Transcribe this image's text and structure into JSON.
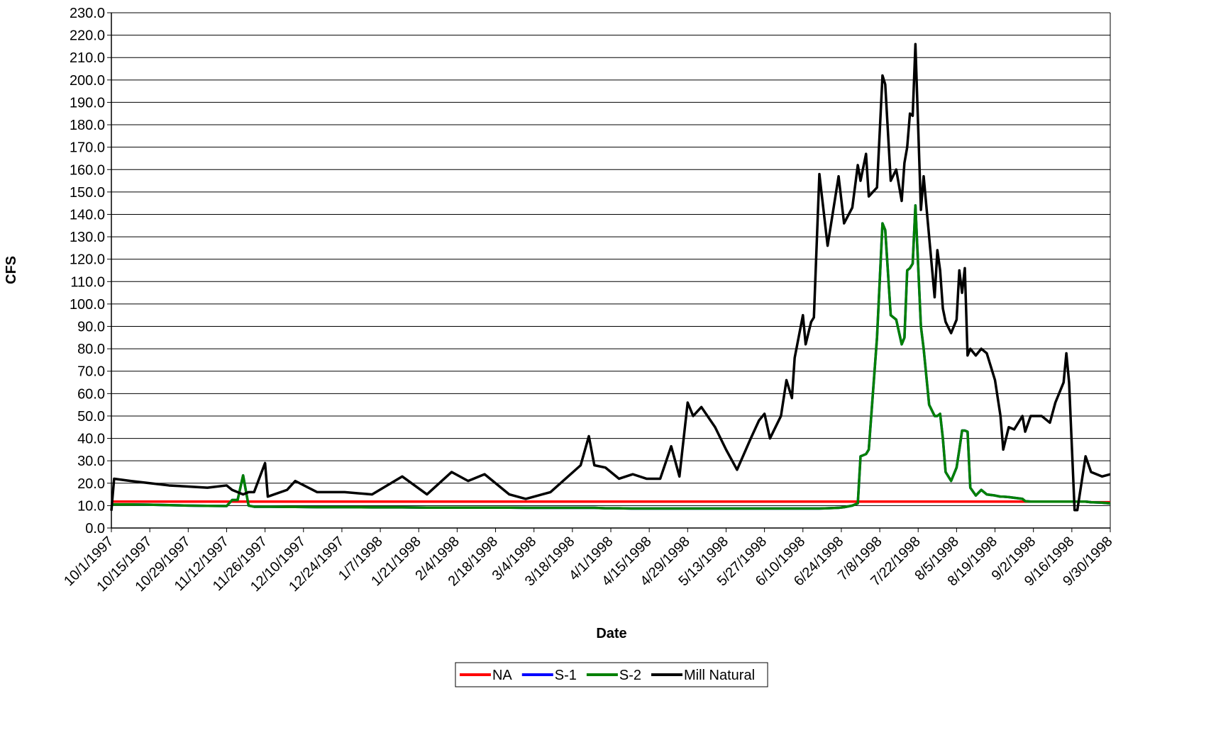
{
  "chart_data": {
    "type": "line",
    "xlabel": "Date",
    "ylabel": "CFS",
    "grid": true,
    "legend": "bottom",
    "x": [
      "10/1/1997",
      "10/2/1997",
      "10/8/1997",
      "10/15/1997",
      "10/22/1997",
      "10/29/1997",
      "11/5/1997",
      "11/12/1997",
      "11/14/1997",
      "11/16/1997",
      "11/18/1997",
      "11/20/1997",
      "11/22/1997",
      "11/26/1997",
      "11/27/1997",
      "12/4/1997",
      "12/7/1997",
      "12/15/1997",
      "12/25/1997",
      "1/4/1998",
      "1/15/1998",
      "1/24/1998",
      "2/2/1998",
      "2/8/1998",
      "2/14/1998",
      "2/23/1998",
      "3/1/1998",
      "3/10/1998",
      "3/21/1998",
      "3/24/1998",
      "3/26/1998",
      "3/30/1998",
      "4/4/1998",
      "4/9/1998",
      "4/14/1998",
      "4/19/1998",
      "4/23/1998",
      "4/26/1998",
      "4/29/1998",
      "5/1/1998",
      "5/4/1998",
      "5/9/1998",
      "5/13/1998",
      "5/17/1998",
      "5/22/1998",
      "5/25/1998",
      "5/27/1998",
      "5/29/1998",
      "6/2/1998",
      "6/4/1998",
      "6/6/1998",
      "6/7/1998",
      "6/10/1998",
      "6/11/1998",
      "6/13/1998",
      "6/14/1998",
      "6/16/1998",
      "6/19/1998",
      "6/23/1998",
      "6/25/1998",
      "6/28/1998",
      "6/30/1998",
      "7/1/1998",
      "7/3/1998",
      "7/4/1998",
      "7/7/1998",
      "7/9/1998",
      "7/10/1998",
      "7/12/1998",
      "7/14/1998",
      "7/16/1998",
      "7/17/1998",
      "7/18/1998",
      "7/19/1998",
      "7/20/1998",
      "7/21/1998",
      "7/23/1998",
      "7/24/1998",
      "7/26/1998",
      "7/28/1998",
      "7/29/1998",
      "7/30/1998",
      "7/31/1998",
      "8/1/1998",
      "8/3/1998",
      "8/5/1998",
      "8/6/1998",
      "8/7/1998",
      "8/8/1998",
      "8/9/1998",
      "8/10/1998",
      "8/12/1998",
      "8/14/1998",
      "8/16/1998",
      "8/19/1998",
      "8/21/1998",
      "8/22/1998",
      "8/24/1998",
      "8/26/1998",
      "8/29/1998",
      "8/30/1998",
      "9/1/1998",
      "9/5/1998",
      "9/8/1998",
      "9/10/1998",
      "9/13/1998",
      "9/14/1998",
      "9/15/1998",
      "9/17/1998",
      "9/18/1998",
      "9/21/1998",
      "9/23/1998",
      "9/27/1998",
      "9/30/1998"
    ],
    "series": [
      {
        "name": "NA",
        "color": "#ff0000",
        "values": [
          11.8,
          11.8,
          11.8,
          11.8,
          11.8,
          11.8,
          11.8,
          11.8,
          11.8,
          11.8,
          11.8,
          11.8,
          11.8,
          11.8,
          11.8,
          11.8,
          11.8,
          11.8,
          11.8,
          11.8,
          11.8,
          11.8,
          11.8,
          11.8,
          11.8,
          11.8,
          11.8,
          11.8,
          11.8,
          11.8,
          11.8,
          11.8,
          11.8,
          11.8,
          11.8,
          11.8,
          11.8,
          11.8,
          11.8,
          11.8,
          11.8,
          11.8,
          11.8,
          11.8,
          11.8,
          11.8,
          11.8,
          11.8,
          11.8,
          11.8,
          11.8,
          11.8,
          11.8,
          11.8,
          11.8,
          11.8,
          11.8,
          11.8,
          11.8,
          11.8,
          11.8,
          11.8,
          11.8,
          11.8,
          11.8,
          11.8,
          11.8,
          11.8,
          11.8,
          11.8,
          11.8,
          11.8,
          11.8,
          11.8,
          11.8,
          11.8,
          11.8,
          11.8,
          11.8,
          11.8,
          11.8,
          11.8,
          11.8,
          11.8,
          11.8,
          11.8,
          11.8,
          11.8,
          11.8,
          11.8,
          11.8,
          11.8,
          11.8,
          11.8,
          11.8,
          11.8,
          11.8,
          11.8,
          11.8,
          11.8,
          11.8,
          11.8,
          11.8,
          11.8,
          11.8,
          11.8,
          11.8,
          11.8,
          11.8,
          11.8,
          11.8,
          11.5,
          11.5,
          11.5
        ]
      },
      {
        "name": "S-1",
        "color": "#0000ff",
        "values": [
          10.5,
          10.5,
          10.5,
          10.4,
          10.2,
          10,
          9.9,
          9.8,
          12.5,
          12.5,
          23.5,
          10,
          9.5,
          9.5,
          9.5,
          9.4,
          9.4,
          9.3,
          9.3,
          9.2,
          9.2,
          9.1,
          9.1,
          9.1,
          9.1,
          9.1,
          9,
          9,
          9,
          9,
          9,
          8.8,
          8.8,
          8.7,
          8.7,
          8.7,
          8.7,
          8.7,
          8.7,
          8.7,
          8.7,
          8.7,
          8.7,
          8.7,
          8.7,
          8.7,
          8.7,
          8.7,
          8.7,
          8.7,
          8.7,
          8.7,
          8.7,
          8.7,
          8.7,
          8.7,
          8.7,
          8.8,
          9,
          9.3,
          10,
          11,
          32,
          33,
          35,
          85,
          136,
          133,
          95,
          93,
          82,
          85,
          115,
          116,
          118,
          144,
          90,
          80,
          55,
          50,
          50,
          51,
          40,
          25,
          21,
          27,
          35,
          43.5,
          43.5,
          43,
          18,
          14.5,
          17,
          15,
          14.5,
          14,
          14,
          13.8,
          13.5,
          13,
          12,
          11.8,
          11.8,
          11.8,
          11.8,
          11.8,
          11.8,
          11.8,
          11.8,
          11.8,
          11.8,
          11.5,
          11.3,
          11
        ]
      },
      {
        "name": "S-2",
        "color": "#008000",
        "values": [
          10.5,
          10.5,
          10.5,
          10.4,
          10.2,
          10,
          9.9,
          9.8,
          12.5,
          12.5,
          23.5,
          10,
          9.5,
          9.5,
          9.5,
          9.4,
          9.4,
          9.3,
          9.3,
          9.2,
          9.2,
          9.1,
          9.1,
          9.1,
          9.1,
          9.1,
          9,
          9,
          9,
          9,
          9,
          8.8,
          8.8,
          8.7,
          8.7,
          8.7,
          8.7,
          8.7,
          8.7,
          8.7,
          8.7,
          8.7,
          8.7,
          8.7,
          8.7,
          8.7,
          8.7,
          8.7,
          8.7,
          8.7,
          8.7,
          8.7,
          8.7,
          8.7,
          8.7,
          8.7,
          8.7,
          8.8,
          9,
          9.3,
          10,
          11,
          32,
          33,
          35,
          85,
          136,
          133,
          95,
          93,
          82,
          85,
          115,
          116,
          118,
          144,
          90,
          80,
          55,
          50,
          50,
          51,
          40,
          25,
          21,
          27,
          35,
          43.5,
          43.5,
          43,
          18,
          14.5,
          17,
          15,
          14.5,
          14,
          14,
          13.8,
          13.5,
          13,
          12,
          11.8,
          11.8,
          11.8,
          11.8,
          11.8,
          11.8,
          11.8,
          11.8,
          11.8,
          11.8,
          11.5,
          11.3,
          11
        ]
      },
      {
        "name": "Mill Natural",
        "color": "#000000",
        "values": [
          7.7,
          22,
          21,
          20,
          19,
          18.5,
          18,
          19,
          17,
          16,
          15,
          16,
          16,
          29,
          14,
          17,
          21,
          16,
          16,
          15,
          23,
          15,
          25,
          21,
          24,
          15,
          13,
          16,
          28,
          41,
          28,
          27,
          22,
          24,
          22,
          22,
          36.5,
          23,
          56,
          50,
          54,
          45,
          35,
          26,
          40,
          48,
          51,
          40,
          50,
          66,
          58,
          76,
          95,
          82,
          92,
          94,
          158,
          126,
          157,
          136,
          143,
          162,
          155,
          167,
          148,
          152,
          202,
          198,
          155,
          160,
          146,
          163,
          170,
          185,
          184,
          216,
          142,
          157,
          130,
          103,
          124,
          115,
          98,
          92,
          87,
          93,
          115,
          105,
          116,
          77,
          80,
          77,
          80,
          78,
          66,
          50,
          35,
          45,
          44,
          50,
          43,
          50,
          50,
          47,
          56,
          65,
          78,
          65,
          8,
          8,
          32,
          25,
          23,
          24
        ]
      }
    ],
    "xlim": [
      "10/1/1997",
      "9/30/1998"
    ],
    "xticks": [
      "10/1/1997",
      "10/15/1997",
      "10/29/1997",
      "11/12/1997",
      "11/26/1997",
      "12/10/1997",
      "12/24/1997",
      "1/7/1998",
      "1/21/1998",
      "2/4/1998",
      "2/18/1998",
      "3/4/1998",
      "3/18/1998",
      "4/1/1998",
      "4/15/1998",
      "4/29/1998",
      "5/13/1998",
      "5/27/1998",
      "6/10/1998",
      "6/24/1998",
      "7/8/1998",
      "7/22/1998",
      "8/5/1998",
      "8/19/1998",
      "9/2/1998",
      "9/16/1998",
      "9/30/1998"
    ],
    "ylim": [
      0,
      230
    ],
    "yticks": [
      {
        "value": 0,
        "label": "0.0"
      },
      {
        "value": 10,
        "label": "10.0"
      },
      {
        "value": 20,
        "label": "20.0"
      },
      {
        "value": 30,
        "label": "30.0"
      },
      {
        "value": 40,
        "label": "40.0"
      },
      {
        "value": 50,
        "label": "50.0"
      },
      {
        "value": 60,
        "label": "60.0"
      },
      {
        "value": 70,
        "label": "70.0"
      },
      {
        "value": 80,
        "label": "80.0"
      },
      {
        "value": 90,
        "label": "90.0"
      },
      {
        "value": 100,
        "label": "100.0"
      },
      {
        "value": 110,
        "label": "110.0"
      },
      {
        "value": 120,
        "label": "120.0"
      },
      {
        "value": 130,
        "label": "130.0"
      },
      {
        "value": 140,
        "label": "140.0"
      },
      {
        "value": 150,
        "label": "150.0"
      },
      {
        "value": 160,
        "label": "160.0"
      },
      {
        "value": 170,
        "label": "170.0"
      },
      {
        "value": 180,
        "label": "180.0"
      },
      {
        "value": 190,
        "label": "190.0"
      },
      {
        "value": 200,
        "label": "200.0"
      },
      {
        "value": 210,
        "label": "210.0"
      },
      {
        "value": 220,
        "label": "220.0"
      },
      {
        "value": 230,
        "label": "230.0"
      }
    ]
  }
}
